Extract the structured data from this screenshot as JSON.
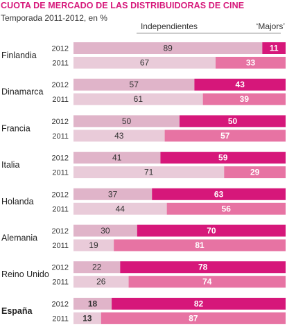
{
  "chart_data": {
    "type": "bar",
    "stacked": true,
    "orientation": "horizontal",
    "title": "CUOTA DE MERCADO DE LAS DISTRIBUIDORAS DE CINE",
    "subtitle": "Temporada 2011-2012, en %",
    "series": [
      {
        "name": "Independientes",
        "color": "#e0b4c9",
        "color_2011": "#e9cbd9"
      },
      {
        "name": "‘Majors’",
        "color": "#d6177a",
        "color_2011": "#e773a3"
      }
    ],
    "xlim": [
      0,
      100
    ],
    "countries": [
      {
        "name": "Finlandia",
        "bold": false,
        "rows": [
          {
            "year": "2012",
            "independientes": 89,
            "majors": 11
          },
          {
            "year": "2011",
            "independientes": 67,
            "majors": 33
          }
        ]
      },
      {
        "name": "Dinamarca",
        "bold": false,
        "rows": [
          {
            "year": "2012",
            "independientes": 57,
            "majors": 43
          },
          {
            "year": "2011",
            "independientes": 61,
            "majors": 39
          }
        ]
      },
      {
        "name": "Francia",
        "bold": false,
        "rows": [
          {
            "year": "2012",
            "independientes": 50,
            "majors": 50
          },
          {
            "year": "2011",
            "independientes": 43,
            "majors": 57
          }
        ]
      },
      {
        "name": "Italia",
        "bold": false,
        "rows": [
          {
            "year": "2012",
            "independientes": 41,
            "majors": 59
          },
          {
            "year": "2011",
            "independientes": 71,
            "majors": 29
          }
        ]
      },
      {
        "name": "Holanda",
        "bold": false,
        "rows": [
          {
            "year": "2012",
            "independientes": 37,
            "majors": 63
          },
          {
            "year": "2011",
            "independientes": 44,
            "majors": 56
          }
        ]
      },
      {
        "name": "Alemania",
        "bold": false,
        "rows": [
          {
            "year": "2012",
            "independientes": 30,
            "majors": 70
          },
          {
            "year": "2011",
            "independientes": 19,
            "majors": 81
          }
        ]
      },
      {
        "name": "Reino Unido",
        "bold": false,
        "rows": [
          {
            "year": "2012",
            "independientes": 22,
            "majors": 78
          },
          {
            "year": "2011",
            "independientes": 26,
            "majors": 74
          }
        ]
      },
      {
        "name": "España",
        "bold": true,
        "rows": [
          {
            "year": "2012",
            "independientes": 18,
            "majors": 82
          },
          {
            "year": "2011",
            "independientes": 13,
            "majors": 87
          }
        ]
      }
    ]
  }
}
